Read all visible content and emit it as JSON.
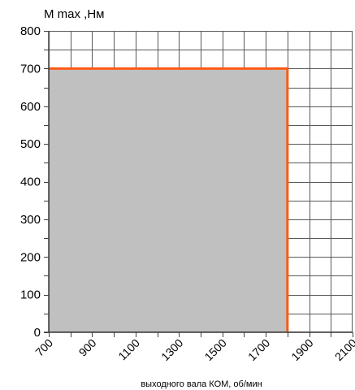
{
  "chart_data": {
    "type": "area",
    "ylabel": "M max ,Нм",
    "xlabel": "выходного вала КОМ, об/мин",
    "xlim": [
      700,
      2100
    ],
    "ylim": [
      0,
      800
    ],
    "x_ticks": [
      700,
      900,
      1100,
      1300,
      1500,
      1700,
      1900,
      2100
    ],
    "x_tick_labels": [
      "700",
      "900",
      "1100",
      "1300",
      "1500",
      "1700",
      "1900",
      "2100"
    ],
    "y_ticks": [
      0,
      100,
      200,
      300,
      400,
      500,
      600,
      700,
      800
    ],
    "y_tick_labels": [
      "0",
      "100",
      "200",
      "300",
      "400",
      "500",
      "600",
      "700",
      "800"
    ],
    "x_minor_step": 100,
    "y_minor_step": 50,
    "grid": true,
    "series": [
      {
        "x": [
          700,
          1800,
          1800
        ],
        "y": [
          700,
          700,
          0
        ]
      }
    ],
    "colors": {
      "fill": "#c0c0c0",
      "line": "#ff5a14",
      "grid": "#595959"
    }
  }
}
